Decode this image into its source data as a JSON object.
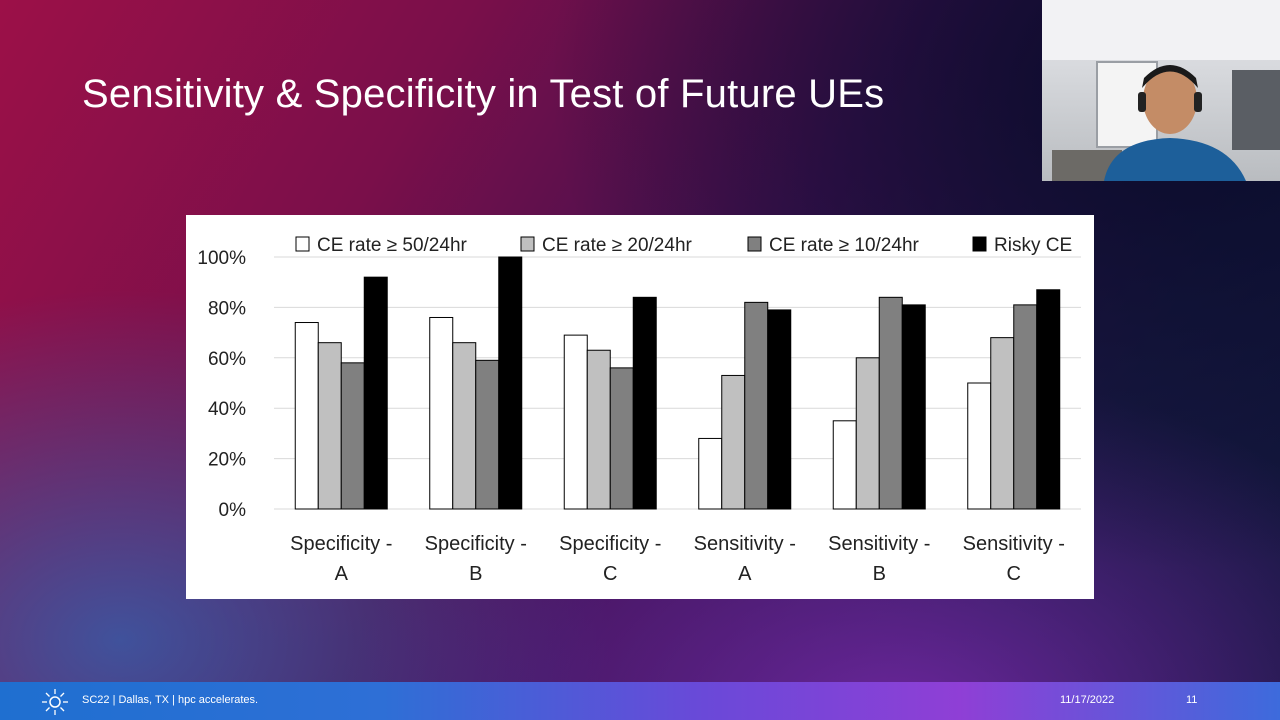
{
  "slide": {
    "title": "Sensitivity & Specificity in Test of Future UEs"
  },
  "chart_data": {
    "type": "bar",
    "title": "",
    "xlabel": "",
    "ylabel": "",
    "ylim": [
      0,
      100
    ],
    "yticks": [
      "0%",
      "20%",
      "40%",
      "60%",
      "80%",
      "100%"
    ],
    "categories": [
      [
        "Specificity -",
        "A"
      ],
      [
        "Specificity -",
        "B"
      ],
      [
        "Specificity -",
        "C"
      ],
      [
        "Sensitivity -",
        "A"
      ],
      [
        "Sensitivity -",
        "B"
      ],
      [
        "Sensitivity -",
        "C"
      ]
    ],
    "series": [
      {
        "name": "CE rate ≥ 50/24hr",
        "color": "#ffffff",
        "values": [
          74,
          76,
          69,
          28,
          35,
          50
        ]
      },
      {
        "name": "CE rate ≥ 20/24hr",
        "color": "#c0c0c0",
        "values": [
          66,
          66,
          63,
          53,
          60,
          68
        ]
      },
      {
        "name": "CE rate ≥ 10/24hr",
        "color": "#808080",
        "values": [
          58,
          59,
          56,
          82,
          84,
          81
        ]
      },
      {
        "name": "Risky CE",
        "color": "#000000",
        "values": [
          92,
          100,
          84,
          79,
          81,
          87
        ]
      }
    ],
    "legend_position": "top",
    "grid": true
  },
  "footer": {
    "left_text": "SC22 | Dallas, TX | hpc accelerates.",
    "date": "11/17/2022",
    "page": "11"
  }
}
